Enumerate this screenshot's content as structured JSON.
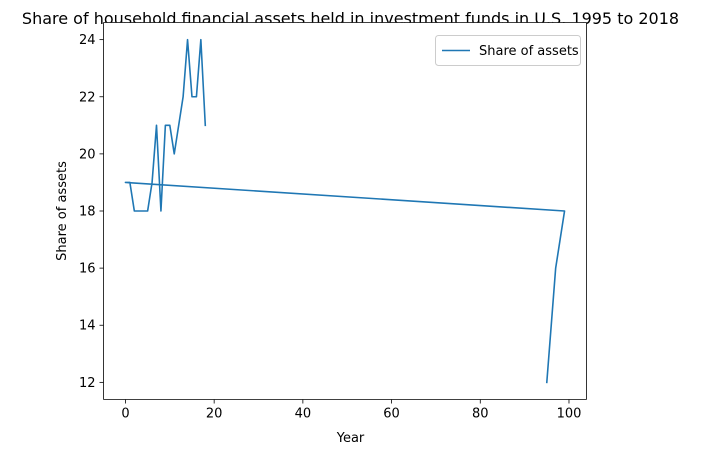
{
  "chart_data": {
    "type": "line",
    "title": "Share of household financial assets held in investment funds in U.S. 1995 to 2018",
    "xlabel": "Year",
    "ylabel": "Share of assets",
    "xlim": [
      -4.95,
      103.95
    ],
    "ylim": [
      11.4,
      24.6
    ],
    "xticks": [
      0,
      20,
      40,
      60,
      80,
      100
    ],
    "yticks": [
      12,
      14,
      16,
      18,
      20,
      22,
      24
    ],
    "grid": false,
    "legend_position": "upper right",
    "series": [
      {
        "name": "Share of assets",
        "color": "#1f77b4",
        "x": [
          95,
          96,
          97,
          98,
          99,
          0,
          1,
          2,
          3,
          4,
          5,
          6,
          7,
          8,
          9,
          10,
          11,
          12,
          13,
          14,
          15,
          16,
          17,
          18
        ],
        "y": [
          12,
          14,
          16,
          17,
          18,
          19,
          19,
          18,
          18,
          18,
          18,
          19,
          21,
          18,
          21,
          21,
          20,
          21,
          22,
          24,
          22,
          22,
          24,
          21
        ]
      }
    ]
  }
}
